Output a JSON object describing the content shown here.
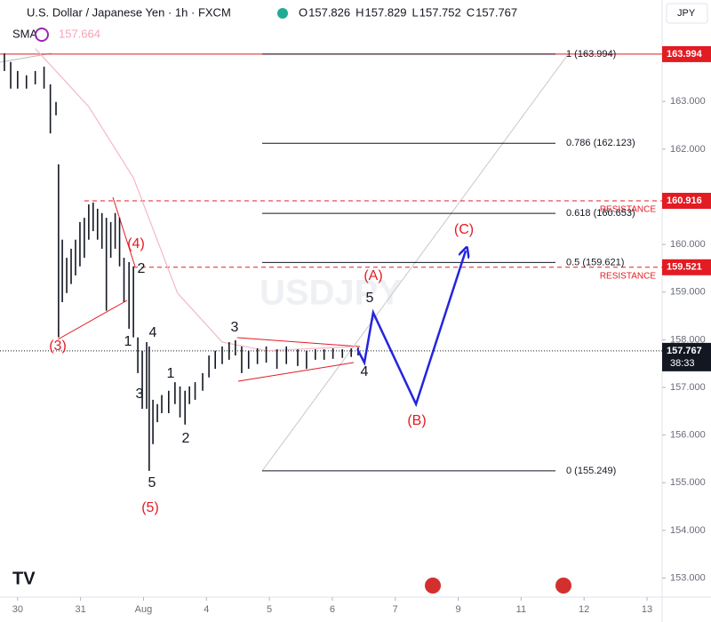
{
  "chart_data": {
    "type": "ohlc",
    "title": "U.S. Dollar / Japanese Yen · 1h · FXCM",
    "ohlc_header": [
      {
        "name": "O",
        "value": 157.826
      },
      {
        "name": "H",
        "value": 157.829
      },
      {
        "name": "L",
        "value": 157.752
      },
      {
        "name": "C",
        "value": 157.767
      }
    ],
    "indicator": {
      "name": "SMA",
      "value": 157.664,
      "color": "#f5a3b5"
    },
    "currency": "JPY",
    "watermark": "USDJPY",
    "color": "#131722",
    "x": [
      -0.21,
      -0.11,
      0,
      0.14,
      0.28,
      0.42,
      0.52,
      0.61,
      0.65,
      0.71,
      0.78,
      0.85,
      0.92,
      0.99,
      1.06,
      1.13,
      1.2,
      1.27,
      1.34,
      1.41,
      1.48,
      1.55,
      1.62,
      1.69,
      1.77,
      1.84,
      1.91,
      1.98,
      2.05,
      2.09,
      2.15,
      2.22,
      2.29,
      2.4,
      2.5,
      2.58,
      2.66,
      2.73,
      2.82,
      2.94,
      3.04,
      3.14,
      3.25,
      3.36,
      3.46,
      3.56,
      3.67,
      3.81,
      3.95,
      4.12,
      4.27,
      4.45,
      4.59,
      4.73,
      4.87,
      5.01,
      5.16,
      5.3,
      5.41
    ],
    "highs": [
      164.01,
      163.83,
      163.64,
      163.55,
      163.64,
      163.73,
      163.36,
      162.99,
      161.68,
      160.1,
      159.72,
      159.91,
      160.1,
      160.47,
      160.56,
      160.84,
      160.88,
      160.75,
      160.66,
      160.56,
      160.47,
      160.66,
      160.56,
      159.72,
      159.63,
      159.54,
      158.05,
      157.77,
      157.95,
      157.86,
      156.74,
      156.65,
      156.84,
      156.93,
      157.11,
      157.02,
      156.93,
      157.02,
      157.11,
      157.3,
      157.67,
      157.77,
      157.86,
      157.95,
      157.99,
      157.86,
      157.77,
      157.82,
      157.86,
      157.8,
      157.86,
      157.8,
      157.77,
      157.8,
      157.8,
      157.82,
      157.8,
      157.82,
      157.84
    ],
    "lows": [
      163.64,
      163.27,
      163.27,
      163.27,
      163.36,
      163.27,
      162.33,
      162.71,
      158.05,
      158.79,
      158.98,
      159.17,
      159.35,
      159.54,
      159.72,
      160.1,
      160.28,
      160.1,
      159.91,
      158.61,
      159.72,
      159.91,
      159.54,
      158.79,
      158.23,
      158.05,
      157.3,
      156.55,
      156.55,
      155.25,
      155.81,
      156.27,
      156.46,
      156.46,
      156.65,
      156.37,
      156.22,
      156.65,
      156.74,
      156.93,
      157.21,
      157.39,
      157.49,
      157.58,
      157.67,
      157.3,
      157.39,
      157.49,
      157.52,
      157.39,
      157.49,
      157.45,
      157.39,
      157.58,
      157.58,
      157.6,
      157.62,
      157.64,
      157.67
    ],
    "sma": {
      "x": [
        0.28,
        1.13,
        1.84,
        2.54,
        3.25,
        3.95,
        5.37
      ],
      "values": [
        164.11,
        162.89,
        161.4,
        158.98,
        157.95,
        157.77,
        157.86
      ],
      "color": "#f5b8c4"
    },
    "projection": {
      "x": [
        5.4,
        5.51,
        5.65,
        6.33,
        7.12
      ],
      "values": [
        157.8,
        157.52,
        158.57,
        156.65,
        159.87
      ],
      "color": "#2424e0"
    },
    "fib": [
      {
        "label": "1 (163.994)",
        "price": 163.994
      },
      {
        "label": "0.786 (162.123)",
        "price": 162.123
      },
      {
        "label": "0.618 (160.653)",
        "price": 160.653
      },
      {
        "label": "0.5 (159.621)",
        "price": 159.621
      },
      {
        "label": "0 (155.249)",
        "price": 155.249
      }
    ],
    "resistance": [
      {
        "label": "RESISTANCE",
        "price": 160.916
      },
      {
        "label": "RESISTANCE",
        "price": 159.521
      }
    ],
    "high_price": 163.994,
    "last_price": 157.767,
    "countdown": "38:33",
    "wave_labels": [
      {
        "text": "(3)",
        "color": "#e31b23"
      },
      {
        "text": "(4)",
        "color": "#e31b23"
      },
      {
        "text": "2",
        "color": "#131722"
      },
      {
        "text": "1",
        "color": "#131722"
      },
      {
        "text": "4",
        "color": "#131722"
      },
      {
        "text": "3",
        "color": "#131722"
      },
      {
        "text": "5",
        "color": "#131722"
      },
      {
        "text": "(5)",
        "color": "#e31b23"
      },
      {
        "text": "1",
        "color": "#131722"
      },
      {
        "text": "2",
        "color": "#131722"
      },
      {
        "text": "3",
        "color": "#131722"
      },
      {
        "text": "4",
        "color": "#131722"
      },
      {
        "text": "5",
        "color": "#131722"
      },
      {
        "text": "(A)",
        "color": "#e31b23"
      },
      {
        "text": "(B)",
        "color": "#e31b23"
      },
      {
        "text": "(C)",
        "color": "#e31b23"
      }
    ],
    "xlim": [
      -0.28,
      10.24
    ],
    "ylim": [
      152.45,
      165.13
    ],
    "xticks": [
      {
        "value": 0,
        "label": "30"
      },
      {
        "value": 1,
        "label": "31"
      },
      {
        "value": 2,
        "label": "Aug"
      },
      {
        "value": 3,
        "label": "4"
      },
      {
        "value": 4,
        "label": "5"
      },
      {
        "value": 5,
        "label": "6"
      },
      {
        "value": 6,
        "label": "7"
      },
      {
        "value": 7,
        "label": "9"
      },
      {
        "value": 8,
        "label": "11"
      },
      {
        "value": 9,
        "label": "12"
      },
      {
        "value": 10,
        "label": "13"
      }
    ],
    "yticks": [
      {
        "value": 153,
        "label": "153.000"
      },
      {
        "value": 154,
        "label": "154.000"
      },
      {
        "value": 155,
        "label": "155.000"
      },
      {
        "value": 156,
        "label": "156.000"
      },
      {
        "value": 157,
        "label": "157.000"
      },
      {
        "value": 158,
        "label": "158.000"
      },
      {
        "value": 159,
        "label": "159.000"
      },
      {
        "value": 160,
        "label": "160.000"
      },
      {
        "value": 161,
        "label": "161.000"
      },
      {
        "value": 162,
        "label": "162.000"
      },
      {
        "value": 163,
        "label": "163.000"
      }
    ],
    "grid": false
  }
}
